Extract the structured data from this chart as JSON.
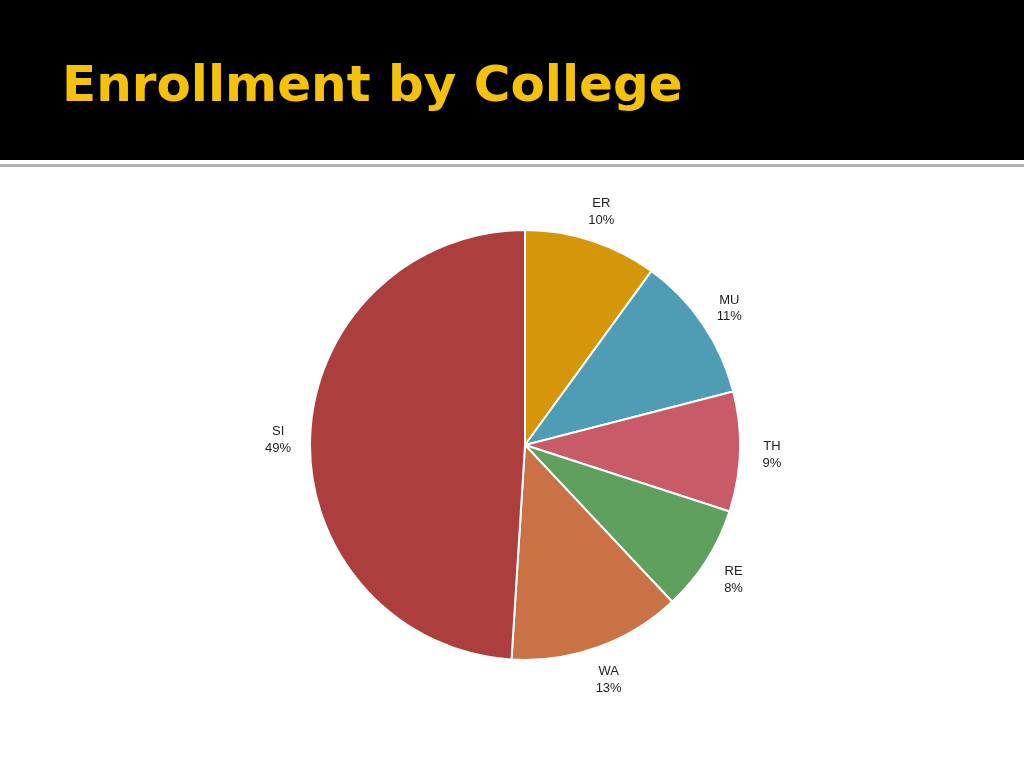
{
  "chart_data": {
    "type": "pie",
    "title": "Enrollment by College",
    "categories": [
      "ER",
      "MU",
      "TH",
      "RE",
      "WA",
      "SI"
    ],
    "values": [
      10,
      11,
      9,
      8,
      13,
      49
    ],
    "colors": [
      "#d4960a",
      "#4f9db5",
      "#c95b68",
      "#5fa05f",
      "#c97245",
      "#ad3e3e"
    ],
    "value_labels": [
      "10%",
      "11%",
      "9%",
      "8%",
      "13%",
      "49%"
    ]
  }
}
